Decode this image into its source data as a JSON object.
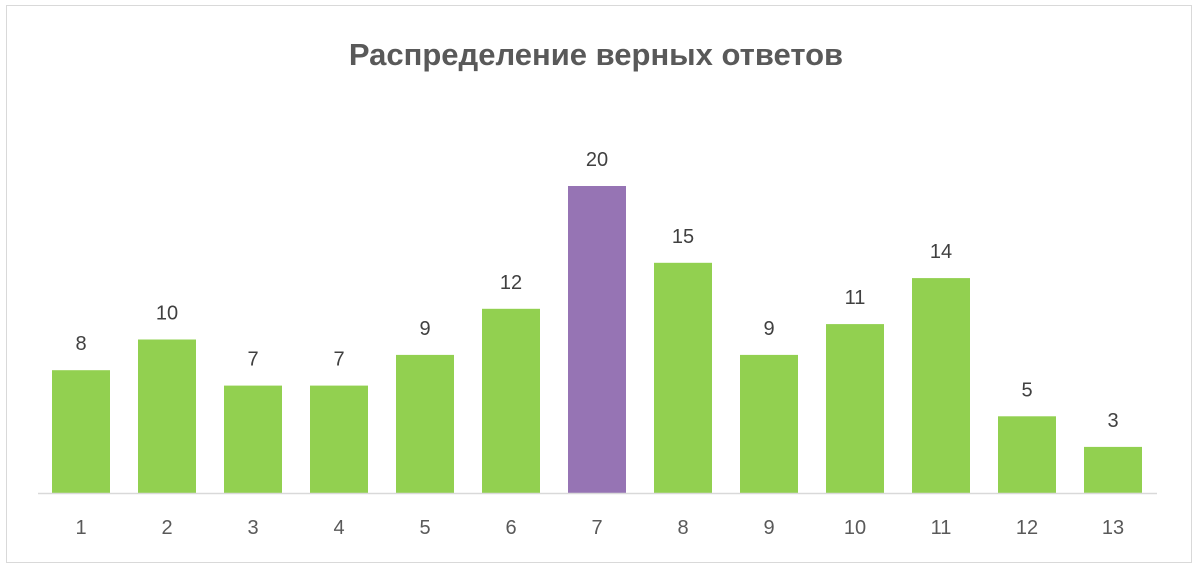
{
  "chart_data": {
    "type": "bar",
    "title": "Распределение верных ответов",
    "xlabel": "",
    "ylabel": "",
    "categories": [
      "1",
      "2",
      "3",
      "4",
      "5",
      "6",
      "7",
      "8",
      "9",
      "10",
      "11",
      "12",
      "13"
    ],
    "values": [
      8,
      10,
      7,
      7,
      9,
      12,
      20,
      15,
      9,
      11,
      14,
      5,
      3
    ],
    "data_labels": [
      "8",
      "10",
      "7",
      "7",
      "9",
      "12",
      "20",
      "15",
      "9",
      "11",
      "14",
      "5",
      "3"
    ],
    "ylim": [
      0,
      20
    ],
    "grid": false,
    "legend": "none",
    "colors": {
      "default_bar": "#92d050",
      "highlight_bar": "#9674b4",
      "axis_line": "#d9d9d9"
    },
    "highlight_category": "7"
  }
}
